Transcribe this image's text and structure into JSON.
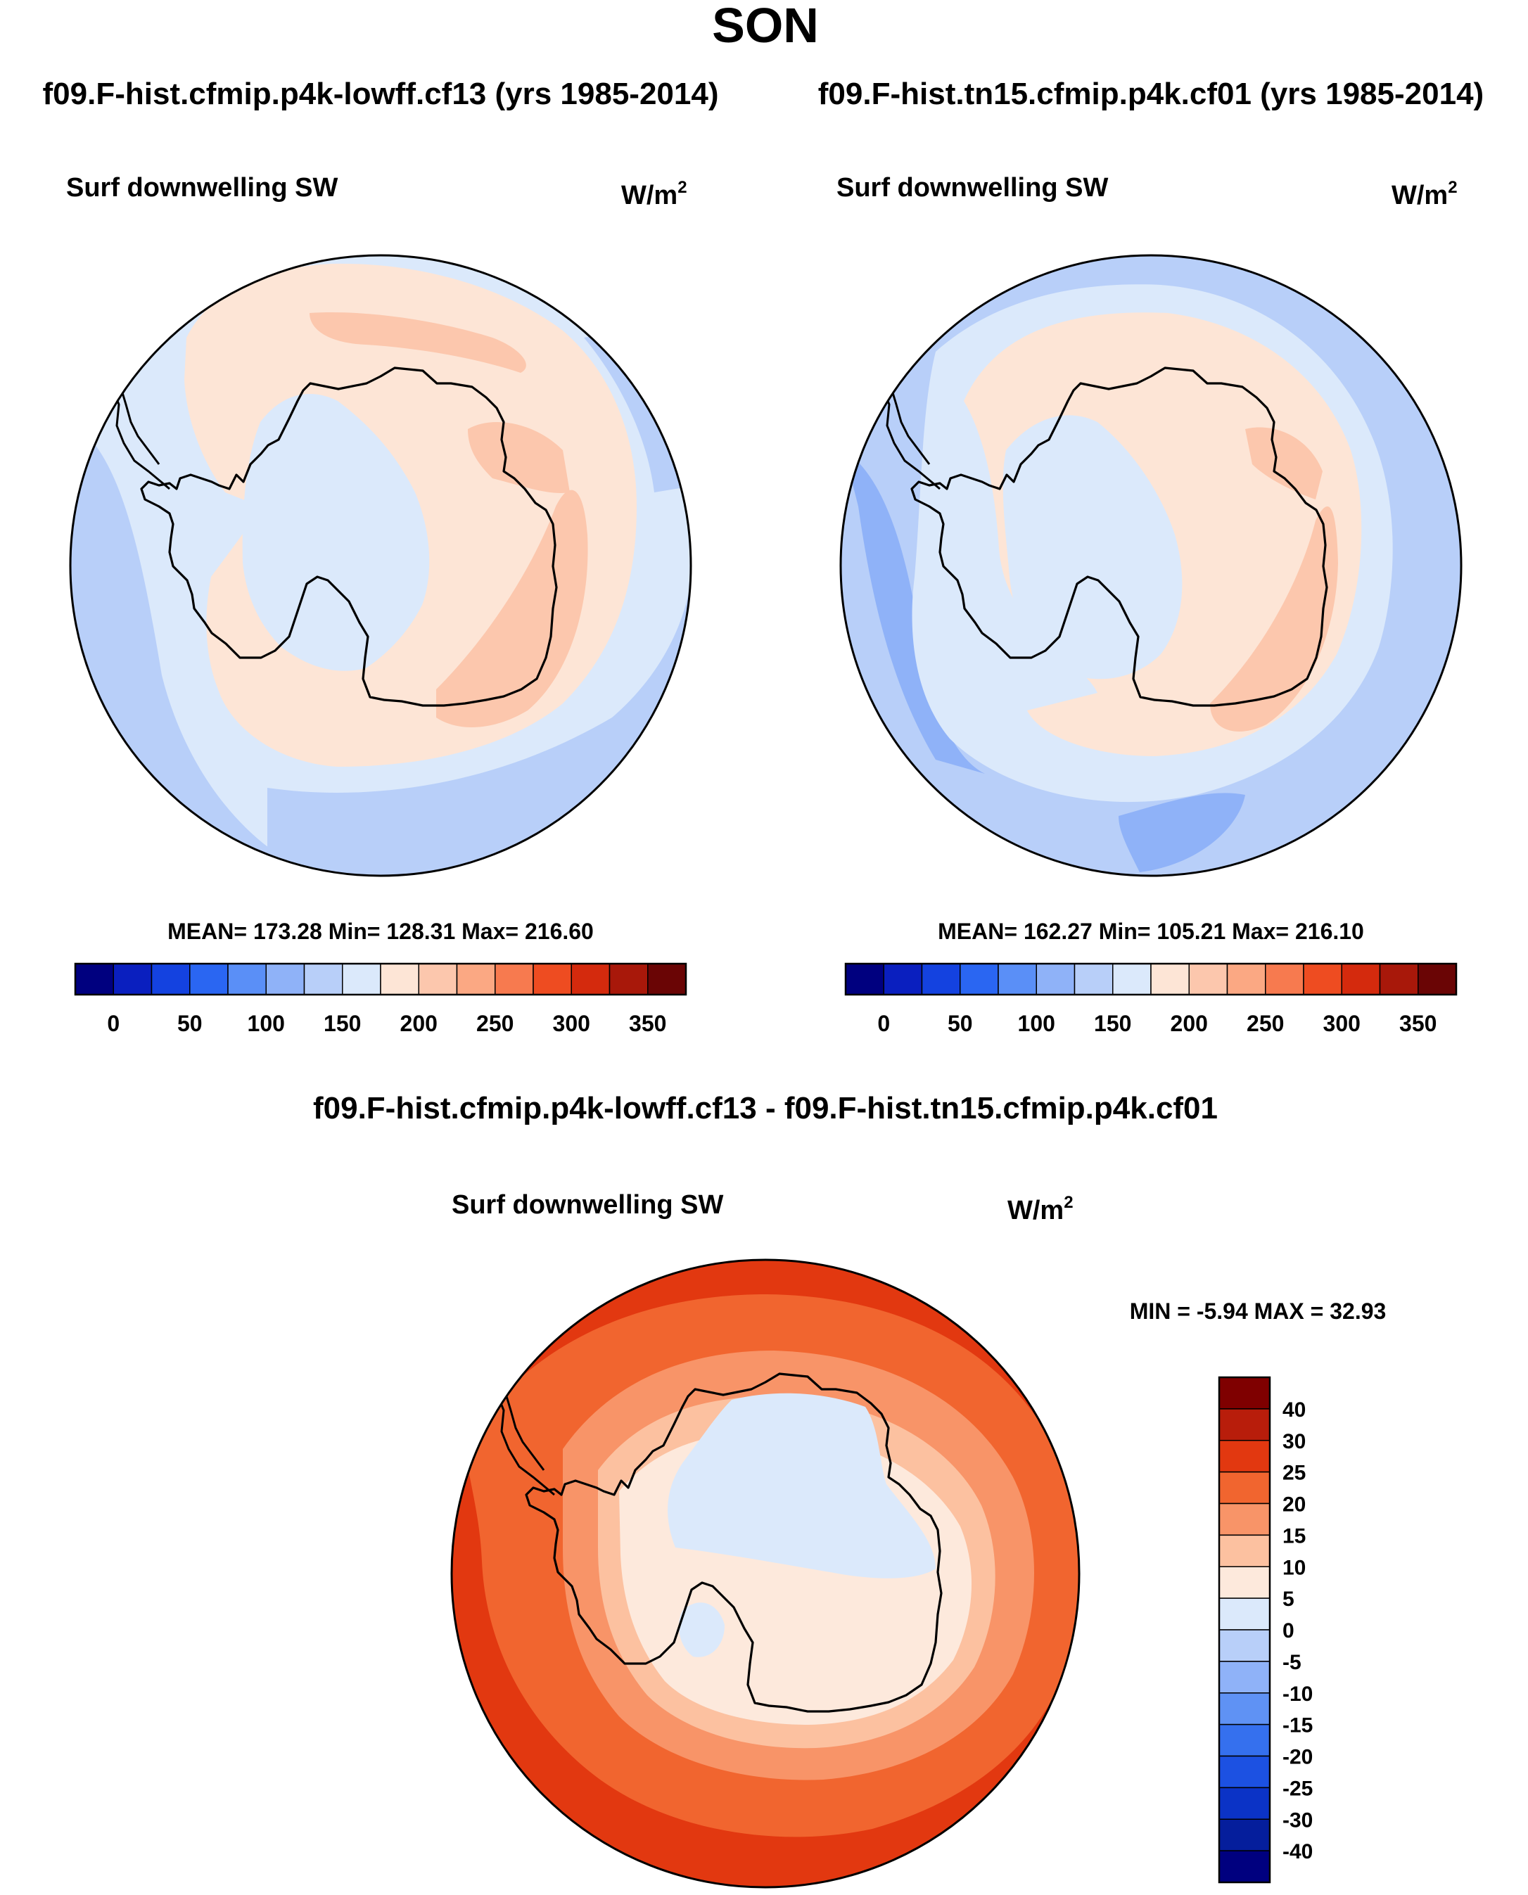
{
  "season": "SON",
  "panel_top_left": {
    "case_title": "f09.F-hist.cfmip.p4k-lowff.cf13 (yrs 1985-2014)",
    "variable": "Surf downwelling SW",
    "units_base": "W/m",
    "units_exp": "2",
    "stats": "MEAN= 173.28  Min= 128.31  Max= 216.60",
    "mean": 173.28,
    "min": 128.31,
    "max": 216.6
  },
  "panel_top_right": {
    "case_title": "f09.F-hist.tn15.cfmip.p4k.cf01 (yrs 1985-2014)",
    "variable": "Surf downwelling SW",
    "units_base": "W/m",
    "units_exp": "2",
    "stats": "MEAN= 162.27  Min= 105.21  Max= 216.10",
    "mean": 162.27,
    "min": 105.21,
    "max": 216.1
  },
  "panel_diff": {
    "case_title": "f09.F-hist.cfmip.p4k-lowff.cf13 - f09.F-hist.tn15.cfmip.p4k.cf01",
    "variable": "Surf downwelling SW",
    "units_base": "W/m",
    "units_exp": "2",
    "stats": "MIN =  -5.94 MAX =  32.93",
    "min": -5.94,
    "max": 32.93
  },
  "abs_colorbar": {
    "colors": [
      "#00007f",
      "#0a1fbf",
      "#1442e0",
      "#2a66f2",
      "#5a8ff7",
      "#8fb2f8",
      "#b8cff9",
      "#dbe9fb",
      "#fde5d6",
      "#fcc7ad",
      "#fba883",
      "#f77a4f",
      "#ee4c21",
      "#d42a0d",
      "#a8180a",
      "#6a0505"
    ],
    "labels": [
      "0",
      "50",
      "100",
      "150",
      "200",
      "250",
      "300",
      "350"
    ]
  },
  "diff_colorbar": {
    "colors_top_to_bottom": [
      "#7f0000",
      "#b81d0b",
      "#e23810",
      "#f1652f",
      "#f89468",
      "#fcc1a0",
      "#fde9dc",
      "#dbe9fb",
      "#b8cff9",
      "#8fb2f8",
      "#5f92f4",
      "#3570ee",
      "#1c51e2",
      "#0b33c6",
      "#051e9c",
      "#00007f"
    ],
    "labels": [
      "40",
      "30",
      "25",
      "20",
      "15",
      "10",
      "5",
      "0",
      "-5",
      "-10",
      "-15",
      "-20",
      "-25",
      "-30",
      "-40"
    ]
  },
  "colors": {
    "map_bg_light_blue": "#dbe9fb",
    "coast": "#000000"
  }
}
